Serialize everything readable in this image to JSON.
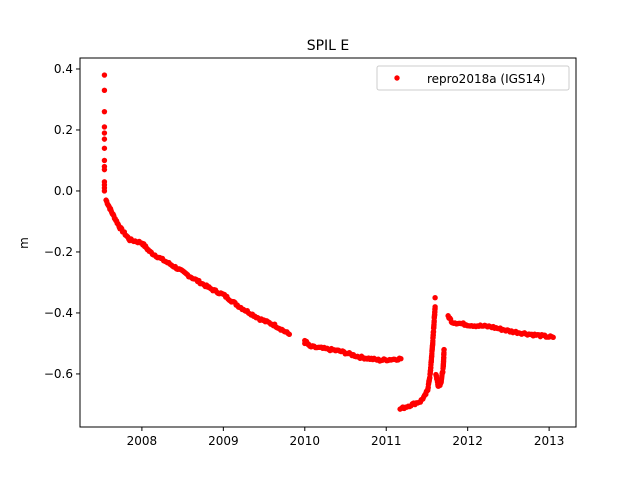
{
  "chart_data": {
    "type": "scatter",
    "title": "SPIL E",
    "xlabel": "",
    "ylabel": "m",
    "xlim": [
      2007.24,
      2013.33
    ],
    "ylim": [
      -0.774,
      0.436
    ],
    "xticks": [
      2008,
      2009,
      2010,
      2011,
      2012,
      2013
    ],
    "xtick_labels": [
      "2008",
      "2009",
      "2010",
      "2011",
      "2012",
      "2013"
    ],
    "yticks": [
      0.4,
      0.2,
      0.0,
      -0.2,
      -0.4,
      -0.6
    ],
    "ytick_labels": [
      "0.4",
      "0.2",
      "0.0",
      "−0.2",
      "−0.4",
      "−0.6"
    ],
    "grid": false,
    "legend": {
      "placement": "top-right",
      "entries": [
        "repro2018a (IGS14)"
      ]
    },
    "series": [
      {
        "name": "repro2018a (IGS14)",
        "color": "#ff0000",
        "spike": {
          "x": 2007.54,
          "y": [
            0.38,
            0.33,
            0.26,
            0.21,
            0.19,
            0.17,
            0.14,
            0.1,
            0.08,
            0.07,
            0.03,
            0.02,
            0.01,
            0.0
          ]
        },
        "segments": [
          [
            [
              2007.56,
              -0.03
            ],
            [
              2007.63,
              -0.07
            ],
            [
              2007.73,
              -0.12
            ],
            [
              2007.85,
              -0.16
            ],
            [
              2008.0,
              -0.17
            ],
            [
              2008.1,
              -0.2
            ],
            [
              2008.22,
              -0.22
            ],
            [
              2008.41,
              -0.25
            ],
            [
              2008.59,
              -0.28
            ],
            [
              2008.84,
              -0.32
            ],
            [
              2009.0,
              -0.34
            ],
            [
              2009.2,
              -0.38
            ],
            [
              2009.45,
              -0.42
            ],
            [
              2009.63,
              -0.44
            ],
            [
              2009.81,
              -0.47
            ]
          ],
          [
            [
              2010.0,
              -0.49
            ],
            [
              2010.06,
              -0.51
            ],
            [
              2010.31,
              -0.52
            ],
            [
              2010.43,
              -0.525
            ],
            [
              2010.68,
              -0.545
            ],
            [
              2010.92,
              -0.555
            ],
            [
              2011.18,
              -0.55
            ]
          ],
          [
            [
              2011.17,
              -0.715
            ],
            [
              2011.42,
              -0.69
            ],
            [
              2011.48,
              -0.67
            ],
            [
              2011.51,
              -0.65
            ],
            [
              2011.54,
              -0.6
            ],
            [
              2011.57,
              -0.5
            ],
            [
              2011.59,
              -0.42
            ],
            [
              2011.6,
              -0.38
            ]
          ],
          [
            [
              2011.61,
              -0.6
            ],
            [
              2011.64,
              -0.64
            ],
            [
              2011.67,
              -0.63
            ],
            [
              2011.7,
              -0.58
            ],
            [
              2011.71,
              -0.52
            ]
          ],
          [
            [
              2011.76,
              -0.41
            ],
            [
              2011.81,
              -0.43
            ],
            [
              2012.03,
              -0.44
            ],
            [
              2012.28,
              -0.445
            ],
            [
              2012.52,
              -0.46
            ],
            [
              2012.77,
              -0.47
            ],
            [
              2013.05,
              -0.48
            ]
          ]
        ],
        "outliers": [
          [
            2011.6,
            -0.35
          ],
          [
            2010.0,
            -0.5
          ]
        ]
      }
    ]
  }
}
